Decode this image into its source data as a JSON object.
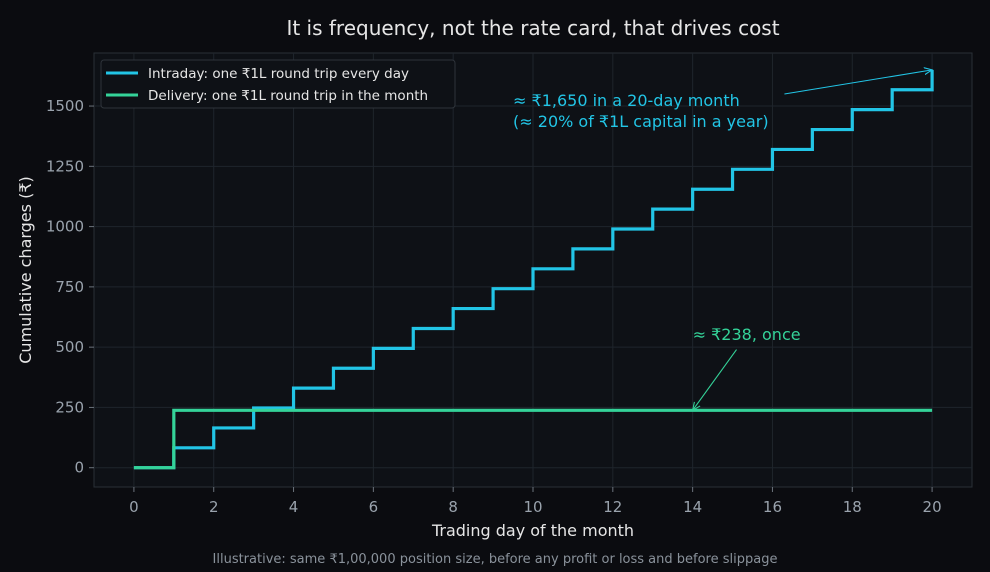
{
  "chart_data": {
    "type": "line",
    "title": "It is frequency, not the rate card, that drives cost",
    "xlabel": "Trading day of the month",
    "ylabel": "Cumulative charges (₹)",
    "caption": "Illustrative: same ₹1,00,000 position size, before any profit or loss and before slippage",
    "xlim": [
      -1,
      21
    ],
    "ylim": [
      -80,
      1720
    ],
    "xticks": [
      0,
      2,
      4,
      6,
      8,
      10,
      12,
      14,
      16,
      18,
      20
    ],
    "yticks": [
      0,
      250,
      500,
      750,
      1000,
      1250,
      1500
    ],
    "grid": true,
    "step": "post",
    "legend_position": "top-left",
    "series": [
      {
        "name": "Intraday: one ₹1L round trip every day",
        "color": "#22c5e6",
        "x": [
          0,
          1,
          2,
          3,
          4,
          5,
          6,
          7,
          8,
          9,
          10,
          11,
          12,
          13,
          14,
          15,
          16,
          17,
          18,
          19,
          20
        ],
        "y": [
          0,
          82.5,
          165,
          247.5,
          330,
          412.5,
          495,
          577.5,
          660,
          742.5,
          825,
          907.5,
          990,
          1072.5,
          1155,
          1237.5,
          1320,
          1402.5,
          1485,
          1567.5,
          1650
        ]
      },
      {
        "name": "Delivery: one ₹1L round trip in the month",
        "color": "#34d399",
        "x": [
          0,
          1,
          20
        ],
        "y": [
          0,
          238,
          238
        ]
      }
    ],
    "annotations": [
      {
        "lines": [
          "≈ ₹1,650 in a 20-day month",
          "(≈ 20% of ₹1L capital in a year)"
        ],
        "color": "#22c5e6",
        "text_at": [
          9.5,
          1500
        ],
        "arrow_from": [
          16.3,
          1550
        ],
        "arrow_to": [
          20,
          1650
        ]
      },
      {
        "lines": [
          "≈ ₹238, once"
        ],
        "color": "#34d399",
        "text_at": [
          14,
          530
        ],
        "arrow_from": [
          15.1,
          490
        ],
        "arrow_to": [
          14,
          238
        ]
      }
    ]
  }
}
